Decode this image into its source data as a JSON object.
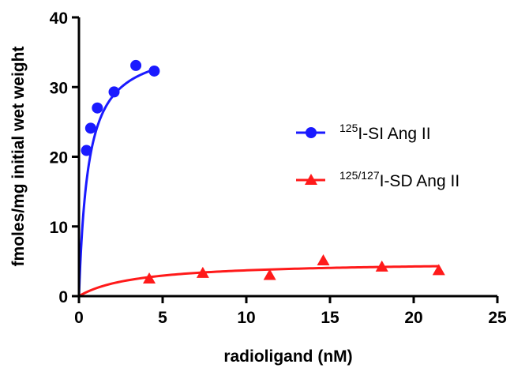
{
  "chart_data": {
    "type": "scatter",
    "xlabel": "radioligand (nM)",
    "ylabel": "fmoles/mg initial wet weight",
    "xlim": [
      0,
      25
    ],
    "ylim": [
      0,
      40
    ],
    "x_ticks": [
      "0",
      "5",
      "10",
      "15",
      "20",
      "25"
    ],
    "y_ticks": [
      "0",
      "10",
      "20",
      "30",
      "40"
    ],
    "x_tick_values": [
      0,
      5,
      10,
      15,
      20,
      25
    ],
    "y_tick_values": [
      0,
      10,
      20,
      30,
      40
    ],
    "grid": false,
    "legend_position": "right",
    "series": [
      {
        "name_sup": "125",
        "name_main": "I-SI Ang II",
        "color": "#1a1aff",
        "marker": "circle",
        "x": [
          0.45,
          0.7,
          1.1,
          2.1,
          3.4,
          4.5
        ],
        "y": [
          20.9,
          24.1,
          27.0,
          29.3,
          33.1,
          32.3
        ],
        "fit": {
          "bmax": 36.5,
          "kd": 0.55,
          "x_end": 4.5
        }
      },
      {
        "name_sup": "125/127",
        "name_main": "I-SD Ang II",
        "color": "#ff1a1a",
        "marker": "triangle",
        "x": [
          4.2,
          7.4,
          11.4,
          14.6,
          18.1,
          21.5
        ],
        "y": [
          2.5,
          3.3,
          3.0,
          5.1,
          4.2,
          3.7
        ],
        "fit": {
          "bmax": 5.0,
          "kd": 3.5,
          "x_end": 21.5
        }
      }
    ]
  }
}
